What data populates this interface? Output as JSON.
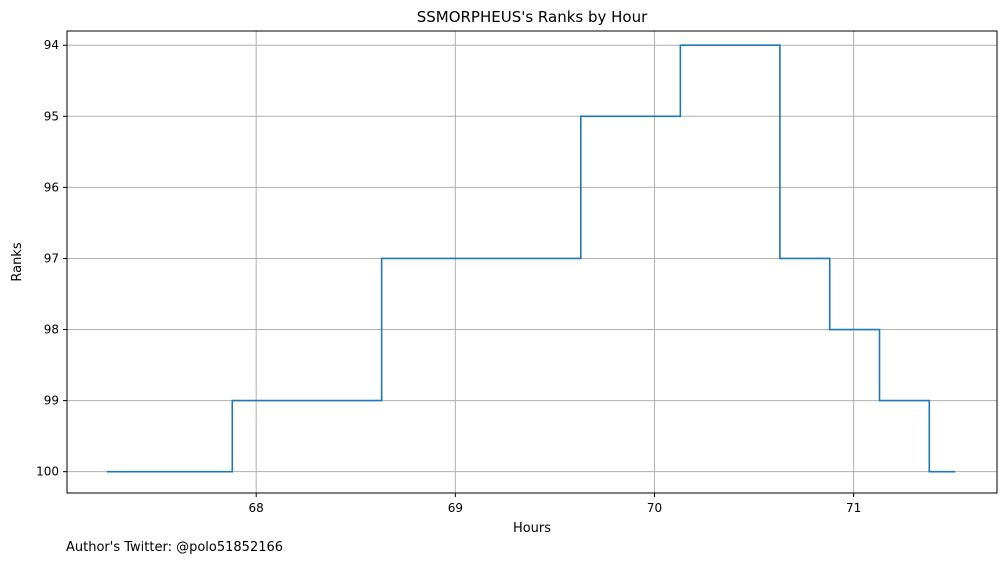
{
  "chart_data": {
    "type": "line",
    "line_style": "step",
    "title": "SSMORPHEUS's Ranks by Hour",
    "xlabel": "Hours",
    "ylabel": "Ranks",
    "xlim": [
      67.05,
      71.72
    ],
    "ylim": [
      100.3,
      93.8
    ],
    "y_inverted": true,
    "grid": true,
    "xticks": [
      68,
      69,
      70,
      71
    ],
    "yticks": [
      94,
      95,
      96,
      97,
      98,
      99,
      100
    ],
    "series": [
      {
        "color": "#1f77b4",
        "x": [
          67.25,
          67.88,
          67.88,
          68.63,
          68.63,
          69.63,
          69.63,
          70.13,
          70.13,
          70.63,
          70.63,
          70.88,
          70.88,
          71.13,
          71.13,
          71.38,
          71.38,
          71.51
        ],
        "y": [
          100,
          100,
          99,
          99,
          97,
          97,
          95,
          95,
          94,
          94,
          97,
          97,
          98,
          98,
          99,
          99,
          100,
          100
        ]
      }
    ]
  },
  "footer": {
    "text": "Author's Twitter: @polo51852166"
  }
}
